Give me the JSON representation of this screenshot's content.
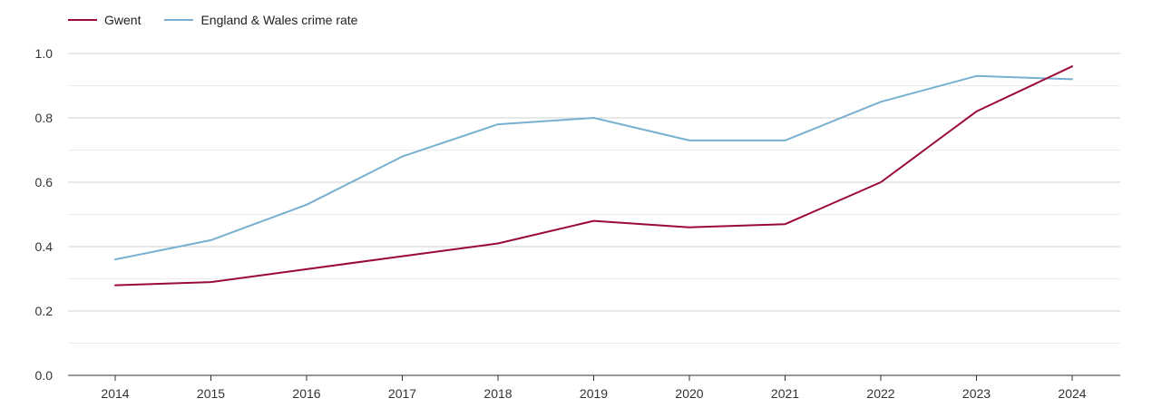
{
  "chart_data": {
    "type": "line",
    "title": "",
    "xlabel": "",
    "ylabel": "",
    "categories": [
      "2014",
      "2015",
      "2016",
      "2017",
      "2018",
      "2019",
      "2020",
      "2021",
      "2022",
      "2023",
      "2024"
    ],
    "series": [
      {
        "name": "Gwent",
        "color": "#9b0a35",
        "values": [
          0.28,
          0.29,
          0.33,
          0.37,
          0.41,
          0.48,
          0.46,
          0.47,
          0.6,
          0.82,
          0.96
        ]
      },
      {
        "name": "England & Wales crime rate",
        "color": "#78b0d2",
        "values": [
          0.36,
          0.42,
          0.53,
          0.68,
          0.78,
          0.8,
          0.73,
          0.73,
          0.85,
          0.93,
          0.92
        ]
      }
    ],
    "ylim": [
      0,
      1.0
    ],
    "yticks": [
      "0.0",
      "0.2",
      "0.4",
      "0.6",
      "0.8",
      "1.0"
    ],
    "grid": true,
    "legend_position": "top-left"
  }
}
